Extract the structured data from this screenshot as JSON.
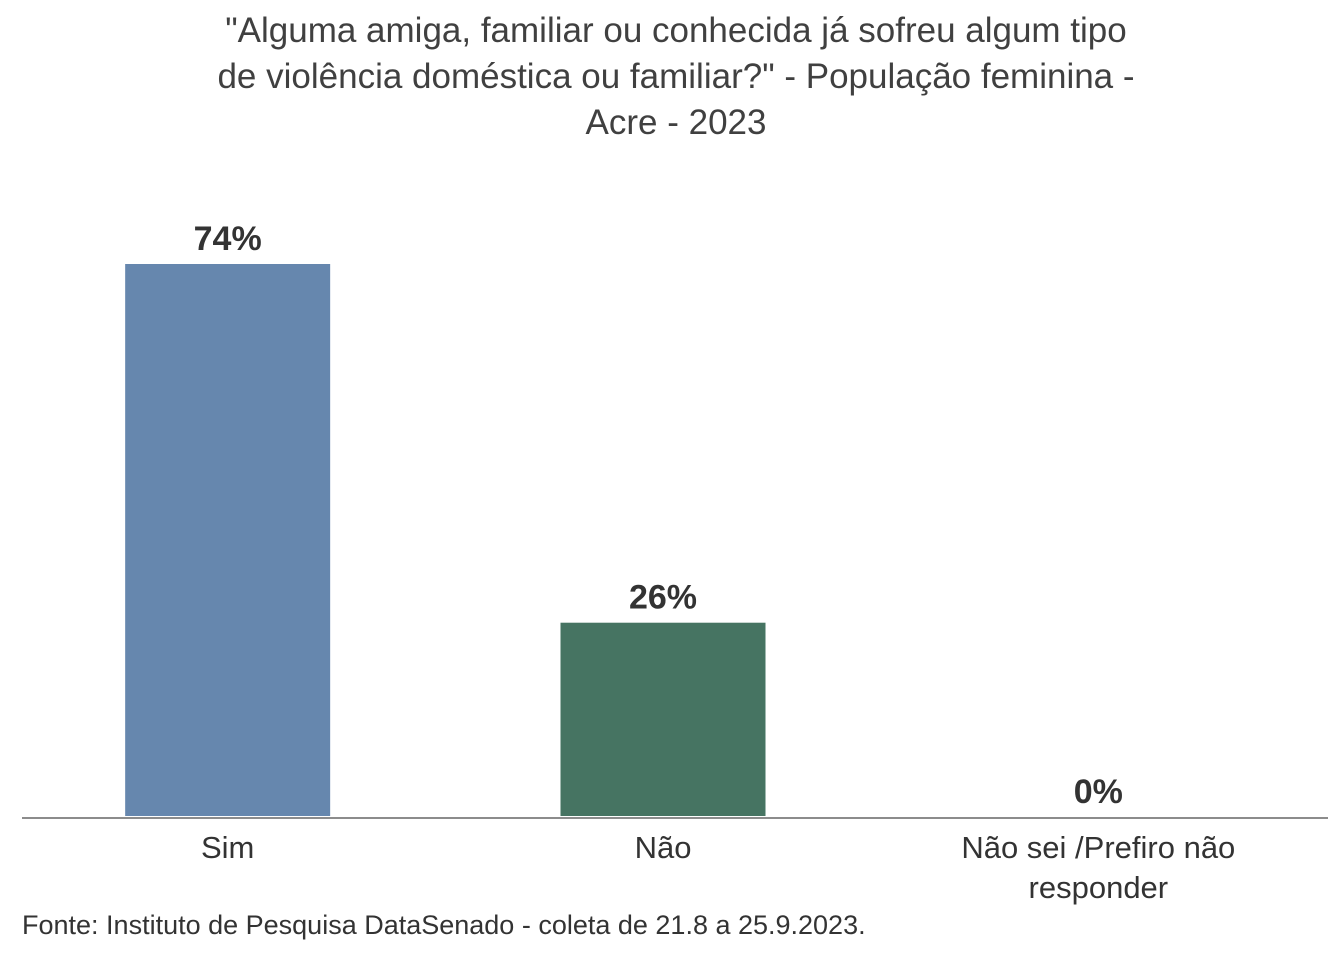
{
  "chart_data": {
    "type": "bar",
    "title_lines": [
      "\"Alguma amiga, familiar ou conhecida já sofreu algum tipo",
      "de violência doméstica ou familiar?\" - População feminina -",
      "Acre - 2023"
    ],
    "categories": [
      [
        "Sim"
      ],
      [
        "Não"
      ],
      [
        "Não sei /Prefiro não",
        "responder"
      ]
    ],
    "values": [
      74,
      26,
      0
    ],
    "value_labels": [
      "74%",
      "26%",
      "0%"
    ],
    "colors": [
      "#6687ae",
      "#467462",
      "#8a8a8a"
    ],
    "ylim": [
      0,
      74
    ],
    "grid": false,
    "legend": "none",
    "xlabel": "",
    "ylabel": ""
  },
  "source": "Fonte: Instituto de Pesquisa DataSenado - coleta de 21.8 a 25.9.2023."
}
